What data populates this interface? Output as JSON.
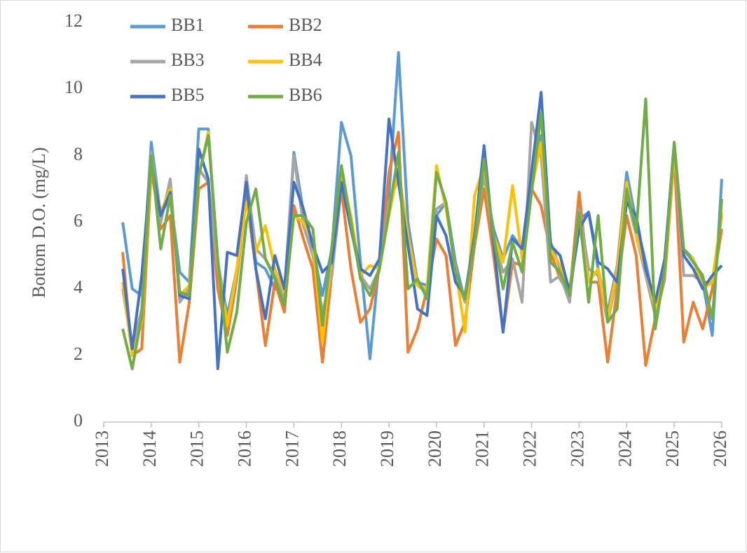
{
  "chart_data": {
    "type": "line",
    "y_label": "Bottom D.O. (mg/L)",
    "x": [
      2013.4,
      2013.6,
      2013.8,
      2014,
      2014.2,
      2014.4,
      2014.6,
      2014.8,
      2015,
      2015.2,
      2015.4,
      2015.6,
      2015.8,
      2016,
      2016.2,
      2016.4,
      2016.6,
      2016.8,
      2017,
      2017.2,
      2017.4,
      2017.6,
      2017.8,
      2018,
      2018.2,
      2018.4,
      2018.6,
      2018.8,
      2019,
      2019.2,
      2019.4,
      2019.6,
      2019.8,
      2020,
      2020.2,
      2020.4,
      2020.6,
      2020.8,
      2021,
      2021.2,
      2021.4,
      2021.6,
      2021.8,
      2022,
      2022.2,
      2022.4,
      2022.6,
      2022.8,
      2023,
      2023.2,
      2023.4,
      2023.6,
      2023.8,
      2024,
      2024.2,
      2024.4,
      2024.6,
      2024.8,
      2025,
      2025.2,
      2025.4,
      2025.6,
      2025.8,
      2026
    ],
    "xlim": [
      2013,
      2026
    ],
    "xticks": [
      2013,
      2014,
      2015,
      2016,
      2017,
      2018,
      2019,
      2020,
      2021,
      2022,
      2023,
      2024,
      2025,
      2026
    ],
    "ylim": [
      0,
      12
    ],
    "yticks": [
      0,
      2,
      4,
      6,
      8,
      10,
      12
    ],
    "series": [
      {
        "name": "BB1",
        "color": "#5b9bd5",
        "values": [
          6.0,
          4.0,
          3.8,
          8.4,
          6.2,
          6.8,
          4.5,
          4.2,
          8.8,
          8.8,
          4.8,
          3.2,
          4.6,
          6.8,
          4.8,
          4.6,
          4.0,
          3.9,
          8.1,
          6.3,
          5.2,
          3.8,
          5.2,
          9.0,
          8.0,
          4.8,
          1.9,
          4.9,
          6.8,
          11.1,
          6.0,
          4.2,
          4.1,
          6.2,
          6.6,
          4.8,
          3.6,
          5.6,
          7.4,
          5.8,
          4.9,
          5.6,
          5.2,
          7.2,
          8.6,
          5.4,
          4.6,
          4.0,
          6.1,
          6.3,
          4.6,
          3.3,
          4.7,
          7.5,
          6.0,
          4.8,
          3.4,
          4.8,
          8.0,
          5.2,
          4.9,
          4.2,
          2.6,
          7.3
        ]
      },
      {
        "name": "BB2",
        "color": "#ed7d31",
        "values": [
          5.1,
          2.0,
          2.2,
          7.6,
          5.8,
          6.2,
          1.8,
          3.6,
          7.0,
          7.2,
          4.0,
          2.6,
          4.3,
          6.8,
          4.6,
          2.3,
          4.2,
          3.3,
          6.5,
          5.5,
          4.6,
          1.8,
          4.5,
          7.0,
          4.6,
          3.0,
          3.4,
          4.6,
          7.5,
          8.7,
          2.1,
          2.8,
          4.0,
          5.5,
          5.0,
          2.3,
          3.0,
          5.3,
          7.0,
          5.0,
          2.7,
          4.8,
          4.7,
          7.0,
          6.5,
          5.1,
          4.3,
          3.8,
          6.9,
          4.2,
          4.2,
          1.8,
          4.0,
          6.2,
          5.0,
          1.7,
          3.1,
          4.3,
          8.0,
          2.4,
          3.6,
          2.8,
          4.0,
          5.8
        ]
      },
      {
        "name": "BB3",
        "color": "#a5a5a5",
        "values": [
          4.0,
          2.2,
          3.4,
          8.1,
          6.0,
          7.3,
          3.6,
          4.0,
          7.6,
          7.2,
          4.6,
          3.0,
          4.4,
          7.4,
          5.2,
          4.9,
          4.4,
          3.7,
          8.0,
          5.9,
          5.0,
          3.3,
          4.4,
          7.2,
          5.8,
          4.4,
          4.0,
          4.6,
          6.6,
          7.3,
          5.3,
          4.1,
          3.9,
          6.4,
          6.6,
          4.4,
          3.6,
          5.4,
          7.6,
          5.4,
          4.5,
          4.9,
          3.6,
          9.0,
          8.0,
          4.2,
          4.4,
          3.6,
          6.4,
          4.6,
          4.4,
          3.0,
          4.4,
          6.8,
          5.6,
          4.4,
          3.2,
          4.4,
          8.2,
          4.4,
          4.4,
          4.2,
          4.2,
          6.2
        ]
      },
      {
        "name": "BB4",
        "color": "#ffc000",
        "values": [
          4.2,
          2.0,
          3.0,
          7.8,
          6.3,
          7.0,
          3.8,
          4.1,
          7.4,
          8.7,
          4.8,
          2.9,
          4.6,
          6.6,
          5.1,
          5.9,
          4.6,
          3.9,
          6.2,
          6.0,
          5.4,
          2.4,
          5.1,
          7.4,
          6.2,
          4.4,
          4.7,
          4.6,
          6.2,
          7.6,
          5.6,
          4.1,
          4.0,
          7.7,
          6.4,
          4.6,
          2.7,
          6.8,
          7.7,
          5.6,
          4.8,
          7.1,
          4.9,
          7.0,
          8.4,
          5.2,
          4.7,
          4.0,
          6.0,
          4.2,
          4.6,
          3.1,
          4.6,
          7.2,
          5.6,
          4.6,
          3.4,
          4.5,
          8.1,
          5.1,
          4.9,
          4.0,
          4.2,
          6.3
        ]
      },
      {
        "name": "BB5",
        "color": "#4472c4",
        "values": [
          4.6,
          2.2,
          4.4,
          7.8,
          6.2,
          6.9,
          3.8,
          3.7,
          8.2,
          7.3,
          1.6,
          5.1,
          5.0,
          7.2,
          4.6,
          3.1,
          5.0,
          4.0,
          7.2,
          6.4,
          5.3,
          4.5,
          4.8,
          7.2,
          5.8,
          4.6,
          4.4,
          4.9,
          9.1,
          7.2,
          5.3,
          3.4,
          3.2,
          6.2,
          5.6,
          4.2,
          3.8,
          5.6,
          8.3,
          5.4,
          2.7,
          5.5,
          5.2,
          7.5,
          9.9,
          5.3,
          5.0,
          3.9,
          5.8,
          6.3,
          4.8,
          4.6,
          4.2,
          6.6,
          6.2,
          4.6,
          3.6,
          4.9,
          8.4,
          5.0,
          4.6,
          4.0,
          4.4,
          4.7
        ]
      },
      {
        "name": "BB6",
        "color": "#70ad47",
        "values": [
          2.8,
          1.6,
          3.2,
          8.0,
          5.2,
          6.8,
          3.9,
          3.8,
          7.4,
          8.6,
          4.9,
          2.1,
          3.3,
          6.0,
          7.0,
          4.9,
          4.3,
          3.5,
          6.2,
          6.2,
          5.8,
          2.9,
          5.3,
          7.7,
          6.0,
          4.3,
          3.8,
          4.6,
          6.3,
          8.1,
          4.0,
          4.3,
          3.7,
          7.5,
          6.6,
          4.5,
          3.7,
          5.4,
          7.9,
          5.6,
          4.0,
          5.4,
          4.5,
          6.9,
          9.3,
          4.8,
          4.5,
          3.8,
          6.3,
          3.6,
          6.2,
          3.0,
          3.4,
          7.0,
          5.7,
          9.7,
          2.8,
          4.6,
          8.4,
          5.2,
          4.8,
          4.4,
          3.1,
          6.7
        ]
      }
    ],
    "legend": "top-left"
  }
}
